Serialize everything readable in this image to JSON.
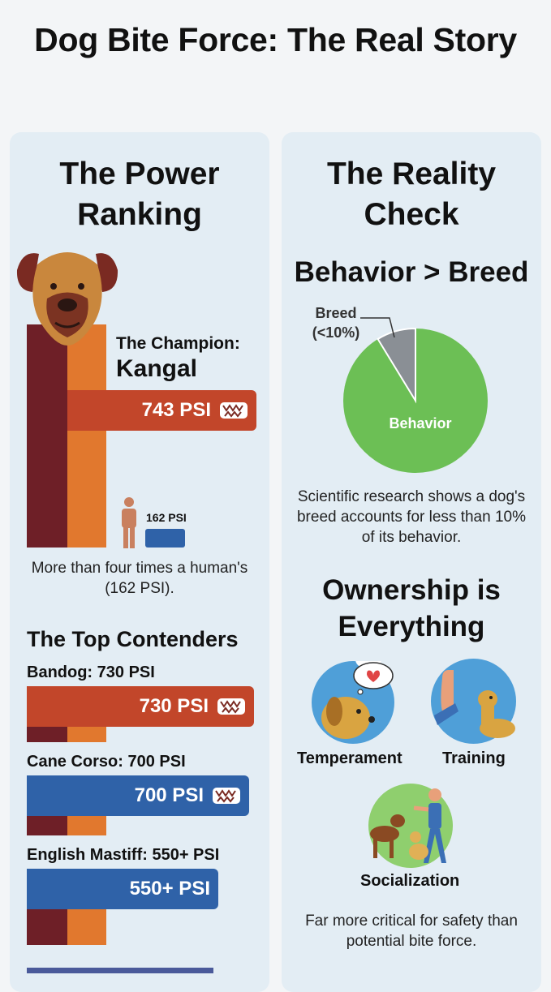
{
  "title": "Dog Bite Force: The Real Story",
  "left": {
    "heading": "The Power Ranking",
    "champion_label": "The Champion:",
    "champion_name": "Kangal",
    "champion_value": "743 PSI",
    "human_value": "162 PSI",
    "comparison": "More than four times a human's (162 PSI).",
    "contenders_title": "The Top Contenders",
    "contenders": [
      {
        "label": "Bandog: 730 PSI",
        "value": "730 PSI",
        "psi": 730
      },
      {
        "label": "Cane Corso: 700 PSI",
        "value": "700 PSI",
        "psi": 700
      },
      {
        "label": "English Mastiff: 550+ PSI",
        "value": "550+ PSI",
        "psi": 550
      }
    ]
  },
  "right": {
    "heading": "The Reality Check",
    "subheading": "Behavior > Breed",
    "pie": {
      "slices": [
        {
          "label": "Behavior",
          "share": 0.92,
          "color": "#6cbf55"
        },
        {
          "label": "Breed\n(<10%)",
          "share": 0.08,
          "color": "#8a8f95"
        }
      ],
      "breed_label_line1": "Breed",
      "breed_label_line2": "(<10%)",
      "behavior_label": "Behavior"
    },
    "research_note": "Scientific research shows a dog's breed accounts for less than 10% of its behavior.",
    "ownership_title": "Ownership is Everything",
    "factors": [
      "Temperament",
      "Training",
      "Socialization"
    ],
    "closing": "Far more critical for safety than potential bite force."
  },
  "colors": {
    "orange_red": "#c2462a",
    "blue": "#2f62a8",
    "maroon": "#6e1f27",
    "orange": "#e1782e",
    "green": "#6cbf55",
    "gray": "#8a8f95"
  }
}
